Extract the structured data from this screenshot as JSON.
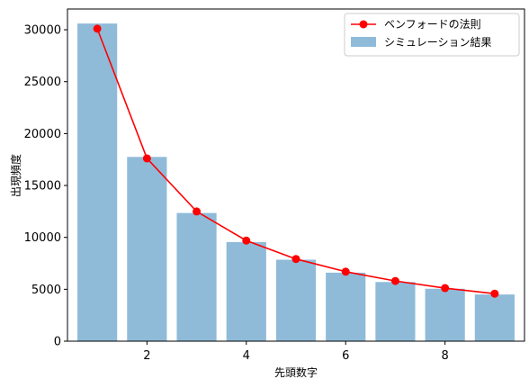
{
  "chart_data": {
    "type": "bar",
    "xlabel": "先頭数字",
    "ylabel": "出現頻度",
    "xlim": [
      0.4,
      9.6
    ],
    "ylim": [
      0,
      32000
    ],
    "x_ticks": [
      2,
      4,
      6,
      8
    ],
    "y_ticks": [
      0,
      5000,
      10000,
      15000,
      20000,
      25000,
      30000
    ],
    "grid": false,
    "legend_position": "top-right",
    "series": [
      {
        "name": "ベンフォードの法則",
        "kind": "line",
        "color": "#ff0000",
        "x": [
          1,
          2,
          3,
          4,
          5,
          6,
          7,
          8,
          9
        ],
        "values": [
          30103,
          17609,
          12494,
          9691,
          7918,
          6695,
          5799,
          5115,
          4576
        ]
      },
      {
        "name": "シミュレーション結果",
        "kind": "bar",
        "color": "#8fbbd9",
        "x": [
          1,
          2,
          3,
          4,
          5,
          6,
          7,
          8,
          9
        ],
        "values": [
          30600,
          17750,
          12350,
          9550,
          7850,
          6600,
          5700,
          5050,
          4500
        ]
      }
    ]
  }
}
